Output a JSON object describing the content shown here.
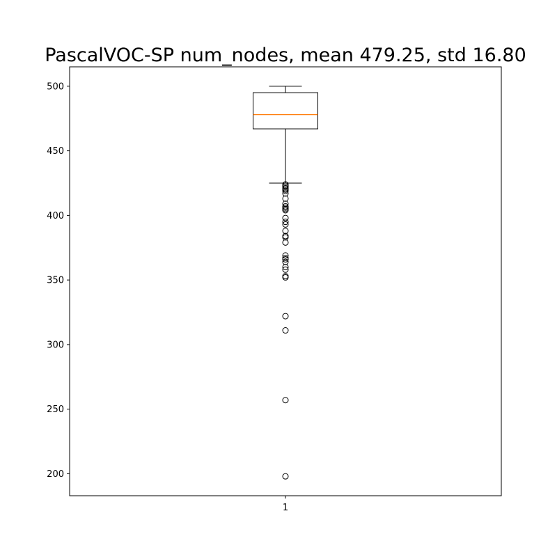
{
  "chart_data": {
    "type": "box",
    "title": "PascalVOC-SP num_nodes, mean 479.25, std 16.80",
    "xlabel": "",
    "ylabel": "",
    "categories": [
      "1"
    ],
    "ylim": [
      183,
      515
    ],
    "yticks": [
      200,
      250,
      300,
      350,
      400,
      450,
      500
    ],
    "grid": false,
    "boxes": [
      {
        "category": "1",
        "whisker_low": 425,
        "q1": 467,
        "median": 478,
        "q3": 495,
        "whisker_high": 500,
        "outliers": [
          424,
          423,
          422,
          421,
          420,
          419,
          417,
          413,
          409,
          407,
          406,
          405,
          404,
          398,
          395,
          393,
          388,
          384,
          383,
          379,
          369,
          367,
          366,
          364,
          360,
          358,
          353,
          352,
          322,
          311,
          257,
          198
        ]
      }
    ],
    "colors": {
      "box": "#000000",
      "median": "#ff7f0e",
      "outlier": "#000000"
    }
  }
}
